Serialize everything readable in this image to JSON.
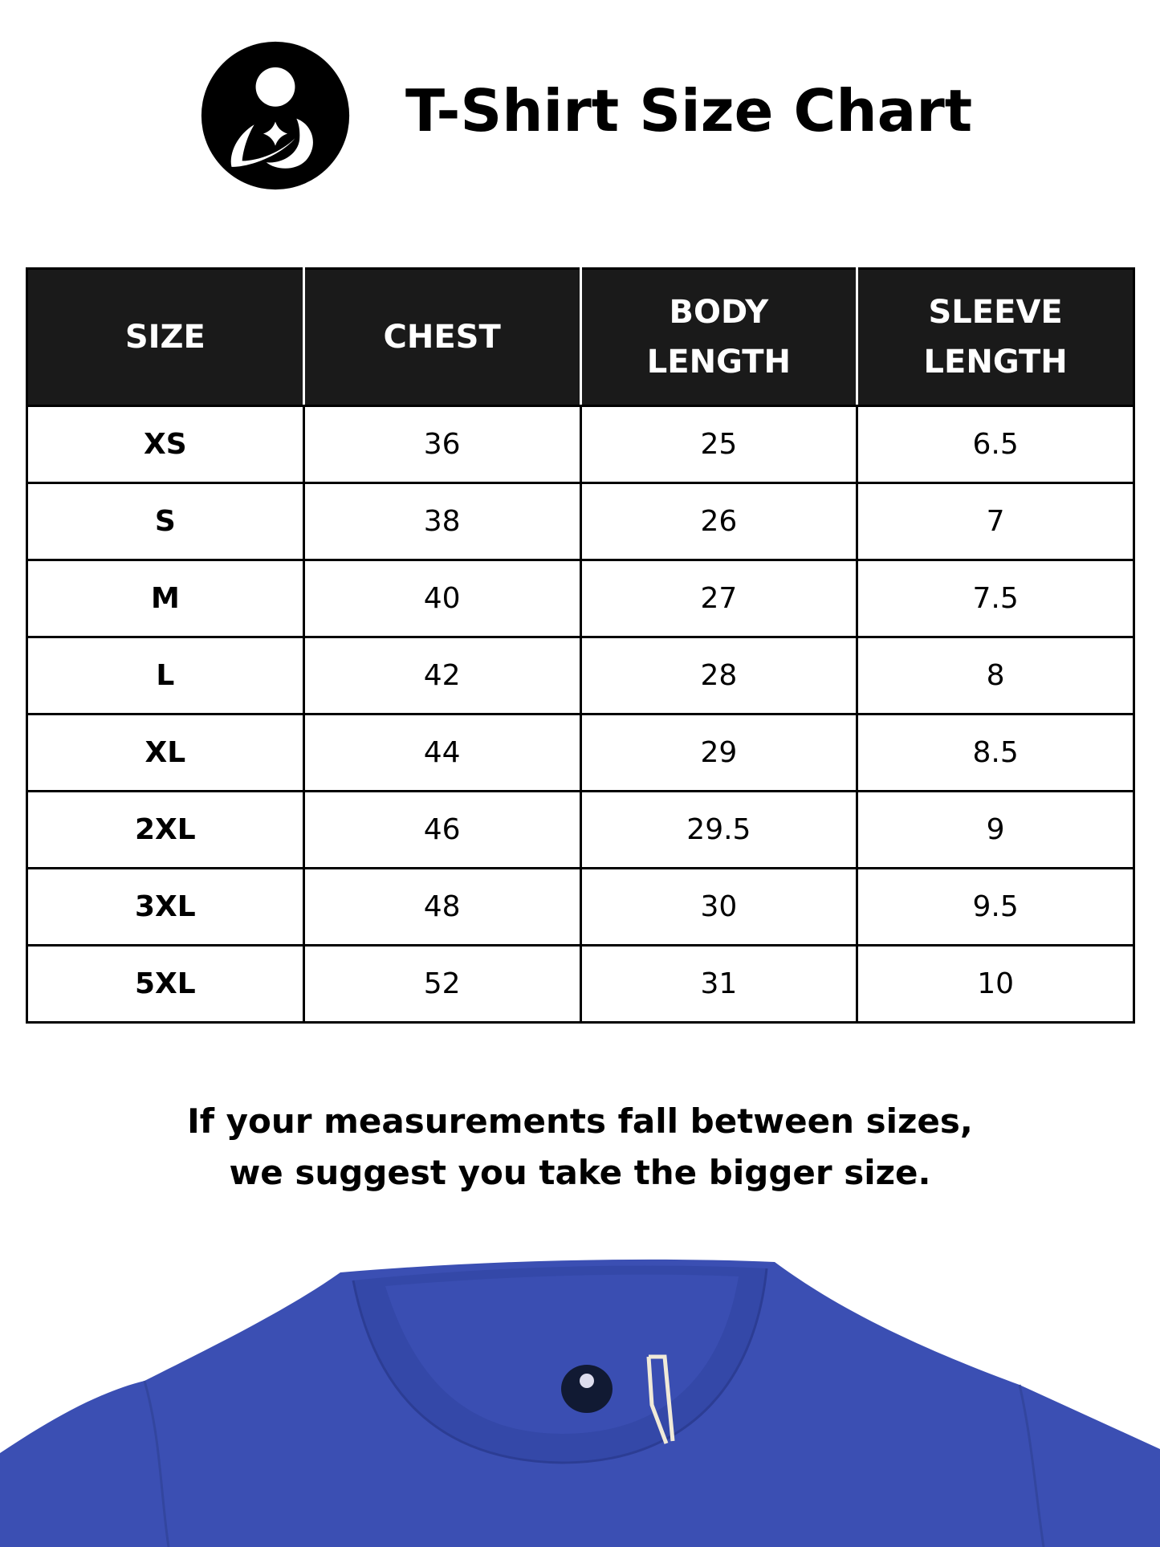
{
  "header": {
    "title": "T-Shirt Size Chart",
    "logo_icon": "mother-baby-logo"
  },
  "table": {
    "columns": [
      {
        "line1": "SIZE",
        "line2": ""
      },
      {
        "line1": "CHEST",
        "line2": ""
      },
      {
        "line1": "BODY",
        "line2": "LENGTH"
      },
      {
        "line1": "SLEEVE",
        "line2": "LENGTH"
      }
    ],
    "rows": [
      [
        "XS",
        "36",
        "25",
        "6.5"
      ],
      [
        "S",
        "38",
        "26",
        "7"
      ],
      [
        "M",
        "40",
        "27",
        "7.5"
      ],
      [
        "L",
        "42",
        "28",
        "8"
      ],
      [
        "XL",
        "44",
        "29",
        "8.5"
      ],
      [
        "2XL",
        "46",
        "29.5",
        "9"
      ],
      [
        "3XL",
        "48",
        "30",
        "9.5"
      ],
      [
        "5XL",
        "52",
        "31",
        "10"
      ]
    ]
  },
  "note": {
    "line1": "If your measurements fall between sizes,",
    "line2": "we suggest you take the bigger size."
  },
  "colors": {
    "header_bg": "#1a1a1a",
    "shirt": "#3b4fb3"
  }
}
